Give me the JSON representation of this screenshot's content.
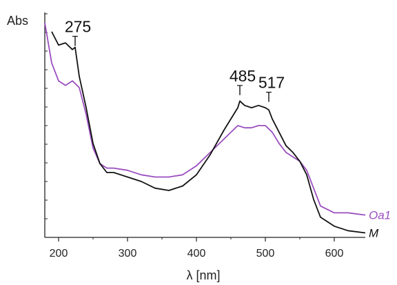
{
  "chart_data": {
    "type": "line",
    "title": "",
    "xlabel": "λ [nm]",
    "ylabel": "Abs",
    "xlim": [
      180,
      645
    ],
    "ylim": [
      0,
      1.0
    ],
    "x_ticks": [
      200,
      300,
      400,
      500,
      600
    ],
    "grid": false,
    "legend": "inline labels at right end of curves",
    "peak_annotations": [
      {
        "label": "275",
        "x": 224,
        "y": 0.85
      },
      {
        "label": "485",
        "x": 463,
        "y": 0.63
      },
      {
        "label": "517",
        "x": 505,
        "y": 0.6
      }
    ],
    "series": [
      {
        "name": "Oa1",
        "color": "#9a4dbf",
        "x": [
          180,
          190,
          200,
          210,
          220,
          230,
          240,
          250,
          260,
          270,
          280,
          300,
          320,
          340,
          360,
          380,
          400,
          420,
          440,
          460,
          470,
          480,
          490,
          500,
          510,
          520,
          530,
          540,
          550,
          560,
          570,
          580,
          600,
          620,
          645
        ],
        "y": [
          0.96,
          0.78,
          0.7,
          0.68,
          0.7,
          0.67,
          0.55,
          0.4,
          0.33,
          0.31,
          0.31,
          0.3,
          0.28,
          0.27,
          0.27,
          0.28,
          0.32,
          0.38,
          0.44,
          0.5,
          0.49,
          0.49,
          0.5,
          0.5,
          0.47,
          0.42,
          0.38,
          0.36,
          0.34,
          0.3,
          0.22,
          0.14,
          0.11,
          0.11,
          0.1
        ]
      },
      {
        "name": "M",
        "color": "#111111",
        "x": [
          190,
          200,
          210,
          220,
          224,
          230,
          240,
          250,
          260,
          270,
          280,
          300,
          320,
          340,
          360,
          380,
          400,
          420,
          440,
          460,
          463,
          470,
          480,
          490,
          500,
          505,
          510,
          520,
          530,
          540,
          550,
          560,
          570,
          580,
          600,
          620,
          645
        ],
        "y": [
          0.92,
          0.86,
          0.87,
          0.84,
          0.85,
          0.72,
          0.58,
          0.42,
          0.33,
          0.29,
          0.29,
          0.27,
          0.25,
          0.22,
          0.21,
          0.23,
          0.28,
          0.37,
          0.48,
          0.58,
          0.61,
          0.59,
          0.58,
          0.59,
          0.58,
          0.57,
          0.53,
          0.47,
          0.41,
          0.38,
          0.34,
          0.28,
          0.17,
          0.09,
          0.05,
          0.03,
          0.02
        ]
      }
    ]
  }
}
